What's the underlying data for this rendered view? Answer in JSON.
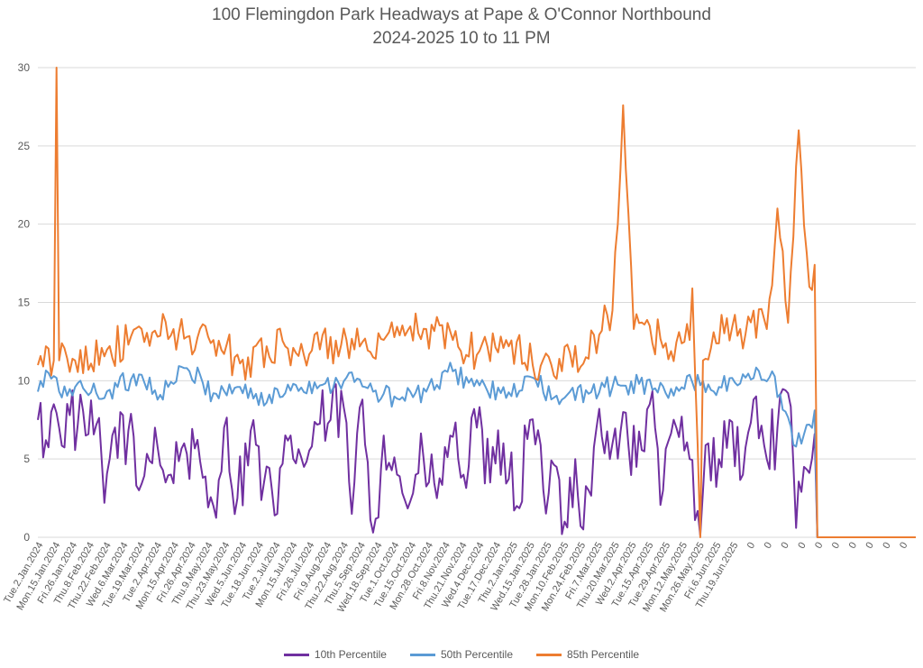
{
  "chart_data": {
    "type": "line",
    "title": "100 Flemingdon Park Headways at Pape & O'Connor Northbound",
    "subtitle": "2024-2025 10 to 11 PM",
    "xlabel": "",
    "ylabel": "",
    "ylim": [
      0,
      30
    ],
    "yticks": [
      0,
      5,
      10,
      15,
      20,
      25,
      30
    ],
    "grid": true,
    "legend_position": "bottom",
    "x_tick_labels": [
      "Tue.2.Jan.2024",
      "Mon.15.Jan.2024",
      "Fri.26.Jan.2024",
      "Thu.8.Feb.2024",
      "Thu.22.Feb.2024",
      "Wed.6.Mar.2024",
      "Tue.19.Mar.2024",
      "Tue.2.Apr.2024",
      "Mon.15.Apr.2024",
      "Fri.26.Apr.2024",
      "Thu.9.May.2024",
      "Thu.23.May.2024",
      "Wed.5.Jun.2024",
      "Tue.18.Jun.2024",
      "Tue.2.Jul.2024",
      "Mon.15.Jul.2024",
      "Fri.26.Jul.2024",
      "Fri.9.Aug.2024",
      "Thu.22.Aug.2024",
      "Thu.5.Sep.2024",
      "Wed.18.Sep.2024",
      "Tue.1.Oct.2024",
      "Tue.15.Oct.2024",
      "Mon.28.Oct.2024",
      "Fri.8.Nov.2024",
      "Thu.21.Nov.2024",
      "Wed.4.Dec.2024",
      "Tue.17.Dec.2024",
      "Thu.2.Jan.2025",
      "Wed.15.Jan.2025",
      "Tue.28.Jan.2025",
      "Mon.10.Feb.2025",
      "Mon.24.Feb.2025",
      "Fri.7.Mar.2025",
      "Thu.20.Mar.2025",
      "Wed.2.Apr.2025",
      "Tue.15.Apr.2025",
      "Tue.29.Apr.2025",
      "Mon.12.May.2025",
      "Mon.26.May.2025",
      "Fri.6.Jun.2025",
      "Thu.19.Jun.2025",
      "0",
      "0",
      "0",
      "0",
      "0",
      "0",
      "0",
      "0",
      "0",
      "0"
    ],
    "series": [
      {
        "name": "10th Percentile",
        "color": "#7030a0",
        "profile": [
          [
            0,
            7.5
          ],
          [
            3,
            6.2
          ],
          [
            5,
            8
          ],
          [
            8,
            7
          ],
          [
            12,
            7.8
          ],
          [
            18,
            6.5
          ],
          [
            22,
            7.2
          ],
          [
            25,
            2.2
          ],
          [
            28,
            6.5
          ],
          [
            34,
            6.8
          ],
          [
            38,
            3
          ],
          [
            44,
            7
          ],
          [
            48,
            3.5
          ],
          [
            55,
            6
          ],
          [
            62,
            3.8
          ],
          [
            66,
            2
          ],
          [
            70,
            7
          ],
          [
            75,
            2.5
          ],
          [
            80,
            6.8
          ],
          [
            85,
            3.5
          ],
          [
            90,
            1.5
          ],
          [
            95,
            6.5
          ],
          [
            100,
            4.5
          ],
          [
            105,
            7.2
          ],
          [
            110,
            7.5
          ],
          [
            115,
            8.3
          ],
          [
            118,
            1.5
          ],
          [
            122,
            8.8
          ],
          [
            126,
            0.3
          ],
          [
            130,
            6.5
          ],
          [
            135,
            4
          ],
          [
            140,
            2.3
          ],
          [
            145,
            5
          ],
          [
            150,
            2.5
          ],
          [
            155,
            6.5
          ],
          [
            160,
            4
          ],
          [
            165,
            7
          ],
          [
            170,
            3.5
          ],
          [
            175,
            6
          ],
          [
            180,
            2
          ],
          [
            185,
            7.5
          ],
          [
            190,
            3
          ],
          [
            195,
            4.5
          ],
          [
            198,
            1
          ],
          [
            202,
            5
          ],
          [
            205,
            0.5
          ],
          [
            210,
            7
          ],
          [
            215,
            5
          ],
          [
            220,
            8
          ],
          [
            225,
            4.5
          ],
          [
            230,
            8.5
          ],
          [
            235,
            3
          ],
          [
            240,
            7
          ],
          [
            245,
            5
          ],
          [
            249,
            0.1
          ],
          [
            252,
            6
          ],
          [
            256,
            5
          ],
          [
            260,
            7.5
          ],
          [
            265,
            4
          ],
          [
            270,
            9
          ],
          [
            274,
            5
          ],
          [
            278,
            7
          ],
          [
            282,
            9.2
          ],
          [
            285,
            0.6
          ],
          [
            288,
            4.5
          ],
          [
            292,
            6.6
          ],
          [
            293,
            0
          ],
          [
            330,
            0
          ]
        ]
      },
      {
        "name": "50th Percentile",
        "color": "#5b9bd5",
        "profile": [
          [
            0,
            9.3
          ],
          [
            4,
            10.5
          ],
          [
            8,
            9.3
          ],
          [
            14,
            9.6
          ],
          [
            22,
            9.2
          ],
          [
            30,
            9.6
          ],
          [
            38,
            10.4
          ],
          [
            46,
            9.1
          ],
          [
            56,
            10.8
          ],
          [
            66,
            9.2
          ],
          [
            76,
            9.6
          ],
          [
            86,
            8.6
          ],
          [
            96,
            9.8
          ],
          [
            106,
            9.7
          ],
          [
            116,
            10.2
          ],
          [
            126,
            9.3
          ],
          [
            136,
            8.8
          ],
          [
            146,
            9.3
          ],
          [
            156,
            10.6
          ],
          [
            166,
            9.7
          ],
          [
            176,
            8.9
          ],
          [
            186,
            10.2
          ],
          [
            196,
            8.5
          ],
          [
            206,
            9.4
          ],
          [
            216,
            9.6
          ],
          [
            226,
            9.8
          ],
          [
            236,
            9.2
          ],
          [
            246,
            9.9
          ],
          [
            256,
            9.6
          ],
          [
            266,
            10.2
          ],
          [
            276,
            10.6
          ],
          [
            284,
            5.9
          ],
          [
            290,
            7.2
          ],
          [
            292,
            8.1
          ],
          [
            293,
            0
          ],
          [
            330,
            0
          ]
        ]
      },
      {
        "name": "85th Percentile",
        "color": "#ed7d31",
        "profile": [
          [
            0,
            11
          ],
          [
            6,
            11.3
          ],
          [
            7,
            30
          ],
          [
            8,
            11.3
          ],
          [
            14,
            11.3
          ],
          [
            24,
            12.1
          ],
          [
            34,
            12.3
          ],
          [
            44,
            13.2
          ],
          [
            56,
            12.8
          ],
          [
            66,
            12.6
          ],
          [
            76,
            11.1
          ],
          [
            86,
            12.2
          ],
          [
            96,
            12.1
          ],
          [
            106,
            12
          ],
          [
            116,
            12.6
          ],
          [
            126,
            11.5
          ],
          [
            136,
            12.9
          ],
          [
            146,
            13.3
          ],
          [
            156,
            12.6
          ],
          [
            166,
            11.9
          ],
          [
            176,
            12.6
          ],
          [
            186,
            11
          ],
          [
            196,
            11.4
          ],
          [
            206,
            11.5
          ],
          [
            212,
            13.2
          ],
          [
            216,
            14.5
          ],
          [
            220,
            27.6
          ],
          [
            224,
            13.3
          ],
          [
            236,
            12.4
          ],
          [
            245,
            12.6
          ],
          [
            246,
            15.9
          ],
          [
            249,
            0
          ],
          [
            250,
            11.3
          ],
          [
            254,
            13.1
          ],
          [
            264,
            13.3
          ],
          [
            274,
            13.3
          ],
          [
            278,
            21
          ],
          [
            282,
            13.7
          ],
          [
            286,
            26
          ],
          [
            290,
            16
          ],
          [
            292,
            17.4
          ],
          [
            293,
            0
          ],
          [
            330,
            0
          ]
        ]
      }
    ]
  }
}
